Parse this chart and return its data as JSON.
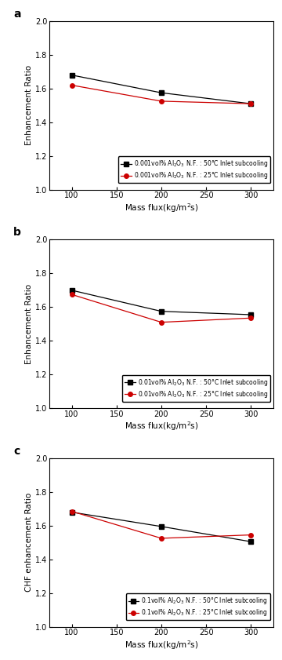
{
  "panels": [
    {
      "label": "a",
      "ylabel": "Enhancement Ratio",
      "series": [
        {
          "x": [
            100,
            200,
            300
          ],
          "y": [
            1.68,
            1.575,
            1.51
          ],
          "color": "#000000",
          "marker": "s",
          "legend": "0.001vol% Al$_2$O$_3$ N.F. : 50°C Inlet subcooling"
        },
        {
          "x": [
            100,
            200,
            300
          ],
          "y": [
            1.62,
            1.525,
            1.51
          ],
          "color": "#cc0000",
          "marker": "o",
          "legend": "0.001vol% Al$_2$O$_3$ N.F. : 25°C Inlet subcooling"
        }
      ]
    },
    {
      "label": "b",
      "ylabel": "Enhancement Ratio",
      "series": [
        {
          "x": [
            100,
            200,
            300
          ],
          "y": [
            1.7,
            1.575,
            1.555
          ],
          "color": "#000000",
          "marker": "s",
          "legend": "0.01vol% Al$_2$O$_3$ N.F. : 50°C Inlet subcooling"
        },
        {
          "x": [
            100,
            200,
            300
          ],
          "y": [
            1.675,
            1.51,
            1.535
          ],
          "color": "#cc0000",
          "marker": "o",
          "legend": "0.01vol% Al$_2$O$_3$ N.F. : 25°C Inlet subcooling"
        }
      ]
    },
    {
      "label": "c",
      "ylabel": "CHF enhancement Ratio",
      "series": [
        {
          "x": [
            100,
            200,
            300
          ],
          "y": [
            1.68,
            1.595,
            1.505
          ],
          "color": "#000000",
          "marker": "s",
          "legend": "0.1vol% Al$_2$O$_3$ N.F. : 50°C Inlet subcooling"
        },
        {
          "x": [
            100,
            200,
            300
          ],
          "y": [
            1.685,
            1.525,
            1.545
          ],
          "color": "#cc0000",
          "marker": "o",
          "legend": "0.1vol% Al$_2$O$_3$ N.F. : 25°C Inlet subcooling"
        }
      ]
    }
  ],
  "xlabel": "Mass flux(kg/m$^2$s)",
  "xlim": [
    75,
    325
  ],
  "ylim": [
    1.0,
    2.0
  ],
  "yticks": [
    1.0,
    1.2,
    1.4,
    1.6,
    1.8,
    2.0
  ],
  "xticks": [
    100,
    150,
    200,
    250,
    300
  ],
  "legend_fontsize": 5.5,
  "axis_fontsize": 7.5,
  "label_fontsize": 10,
  "tick_fontsize": 7,
  "linewidth": 0.9,
  "markersize": 4
}
